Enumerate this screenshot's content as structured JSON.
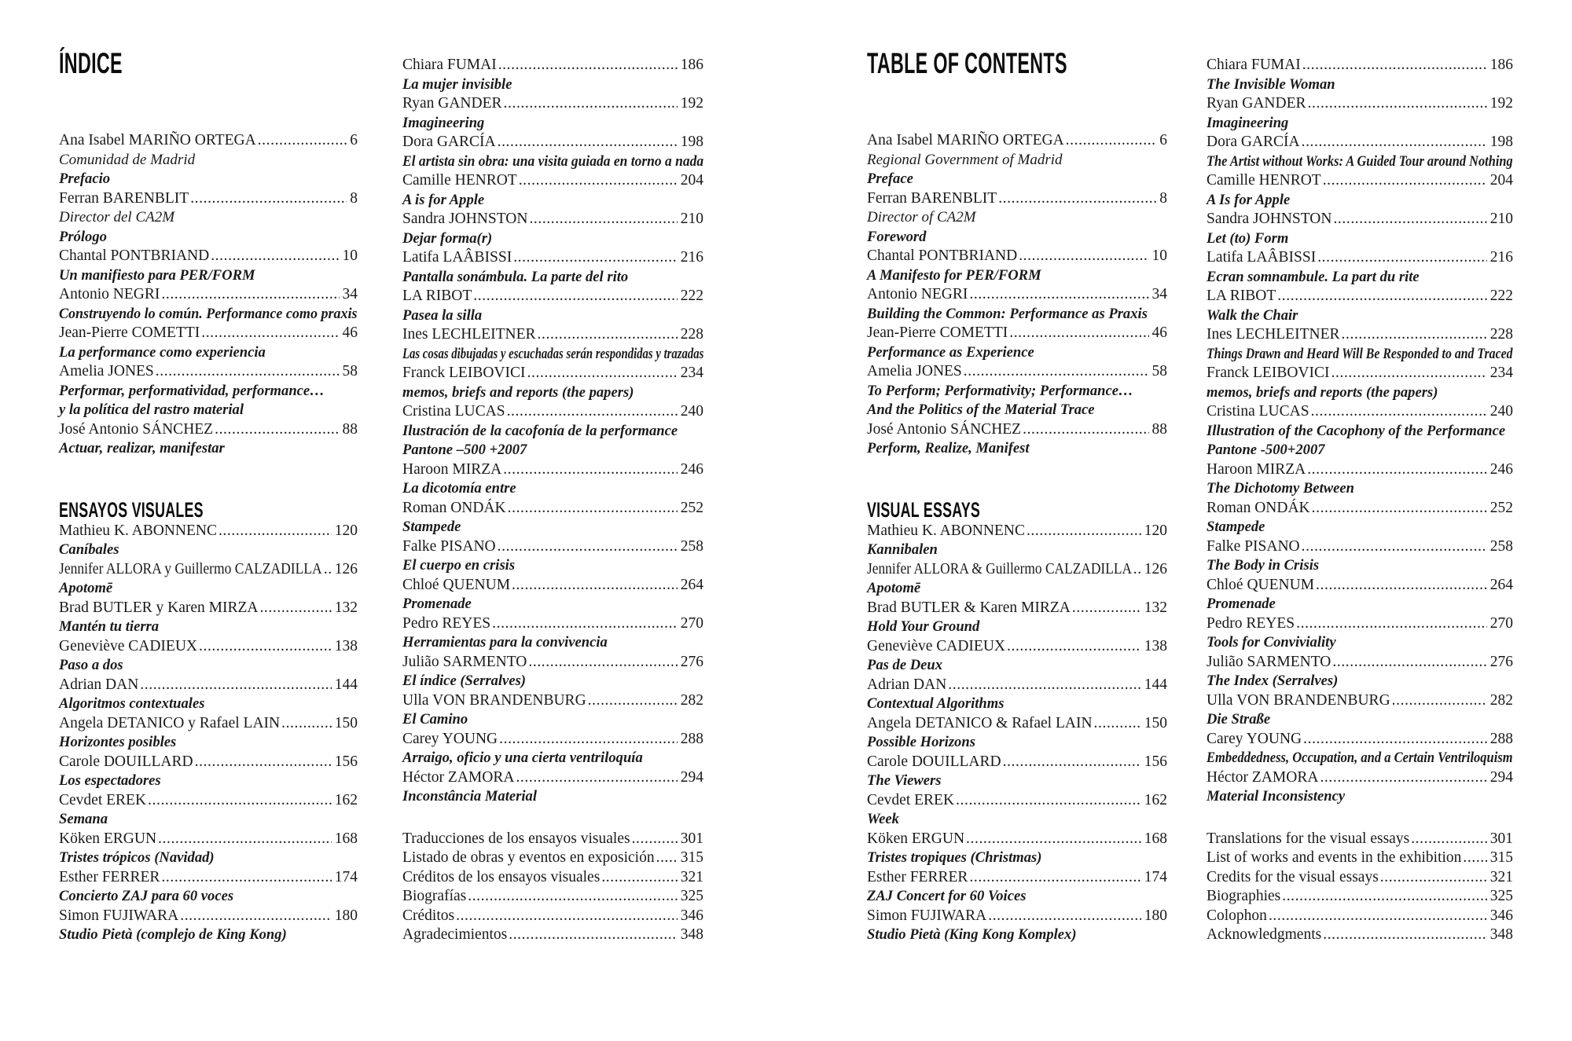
{
  "meta": {
    "background_color": "#ffffff",
    "text_color": "#1a1a1a",
    "heading_color": "#0d0d0d"
  },
  "pages": [
    {
      "side": "left",
      "title": "ÍNDICE",
      "columns": [
        {
          "items": [
            {
              "t": "e",
              "n": "Ana Isabel MARIÑO ORTEGA",
              "p": "6"
            },
            {
              "t": "i",
              "x": "Comunidad de Madrid"
            },
            {
              "t": "s",
              "x": "Prefacio"
            },
            {
              "t": "e",
              "n": "Ferran BARENBLIT",
              "p": "8"
            },
            {
              "t": "i",
              "x": "Director del CA2M"
            },
            {
              "t": "s",
              "x": "Prólogo"
            },
            {
              "t": "e",
              "n": "Chantal PONTBRIAND",
              "p": "10"
            },
            {
              "t": "s",
              "x": "Un manifiesto para PER/FORM"
            },
            {
              "t": "e",
              "n": "Antonio NEGRI",
              "p": "34"
            },
            {
              "t": "s",
              "x": "Construyendo lo común. Performance como praxis"
            },
            {
              "t": "e",
              "n": "Jean-Pierre COMETTI",
              "p": "46"
            },
            {
              "t": "s",
              "x": "La performance como experiencia"
            },
            {
              "t": "e",
              "n": "Amelia JONES",
              "p": "58"
            },
            {
              "t": "s",
              "x": "Performar, performatividad, performance…"
            },
            {
              "t": "s",
              "x": "y la política del rastro material"
            },
            {
              "t": "e",
              "n": "José Antonio SÁNCHEZ",
              "p": "88"
            },
            {
              "t": "s",
              "x": "Actuar, realizar, manifestar"
            },
            {
              "t": "sec",
              "x": "ENSAYOS VISUALES"
            },
            {
              "t": "e",
              "n": "Mathieu K. ABONNENC",
              "p": "120"
            },
            {
              "t": "s",
              "x": "Caníbales"
            },
            {
              "t": "e",
              "n": "Jennifer ALLORA y Guillermo CALZADILLA",
              "p": "126"
            },
            {
              "t": "s",
              "x": "Apotomē"
            },
            {
              "t": "e",
              "n": "Brad BUTLER y Karen MIRZA",
              "p": "132"
            },
            {
              "t": "s",
              "x": "Mantén tu tierra"
            },
            {
              "t": "e",
              "n": "Geneviève CADIEUX",
              "p": "138"
            },
            {
              "t": "s",
              "x": "Paso a dos"
            },
            {
              "t": "e",
              "n": "Adrian DAN",
              "p": "144"
            },
            {
              "t": "s",
              "x": "Algoritmos contextuales"
            },
            {
              "t": "e",
              "n": "Angela DETANICO y Rafael LAIN",
              "p": "150"
            },
            {
              "t": "s",
              "x": "Horizontes posibles"
            },
            {
              "t": "e",
              "n": "Carole DOUILLARD",
              "p": "156"
            },
            {
              "t": "s",
              "x": "Los espectadores"
            },
            {
              "t": "e",
              "n": "Cevdet EREK",
              "p": "162"
            },
            {
              "t": "s",
              "x": "Semana"
            },
            {
              "t": "e",
              "n": "Köken ERGUN",
              "p": "168"
            },
            {
              "t": "s",
              "x": "Tristes trópicos (Navidad)"
            },
            {
              "t": "e",
              "n": "Esther FERRER",
              "p": "174"
            },
            {
              "t": "s",
              "x": "Concierto ZAJ para 60 voces"
            },
            {
              "t": "e",
              "n": "Simon FUJIWARA",
              "p": "180"
            },
            {
              "t": "s",
              "x": "Studio Pietà (complejo de King Kong)"
            }
          ]
        },
        {
          "items": [
            {
              "t": "e",
              "n": "Chiara FUMAI",
              "p": "186"
            },
            {
              "t": "s",
              "x": "La mujer invisible"
            },
            {
              "t": "e",
              "n": "Ryan GANDER",
              "p": "192"
            },
            {
              "t": "s",
              "x": "Imagineering"
            },
            {
              "t": "e",
              "n": "Dora GARCÍA",
              "p": "198"
            },
            {
              "t": "s",
              "x": "El artista sin obra: una visita guiada en torno a nada"
            },
            {
              "t": "e",
              "n": "Camille HENROT",
              "p": "204"
            },
            {
              "t": "s",
              "x": "A is for Apple"
            },
            {
              "t": "e",
              "n": "Sandra JOHNSTON",
              "p": "210"
            },
            {
              "t": "s",
              "x": "Dejar forma(r)"
            },
            {
              "t": "e",
              "n": "Latifa LAÂBISSI",
              "p": "216"
            },
            {
              "t": "s",
              "x": "Pantalla sonámbula. La parte del rito"
            },
            {
              "t": "e",
              "n": "LA RIBOT",
              "p": "222"
            },
            {
              "t": "s",
              "x": "Pasea la silla"
            },
            {
              "t": "e",
              "n": "Ines LECHLEITNER",
              "p": "228"
            },
            {
              "t": "s",
              "x": "Las cosas dibujadas y escuchadas serán respondidas y trazadas"
            },
            {
              "t": "e",
              "n": "Franck LEIBOVICI",
              "p": "234"
            },
            {
              "t": "s",
              "x": "memos, briefs and reports (the papers)"
            },
            {
              "t": "e",
              "n": "Cristina LUCAS",
              "p": "240"
            },
            {
              "t": "s",
              "x": "Ilustración de la cacofonía de la performance"
            },
            {
              "t": "s",
              "x": "Pantone –500 +2007"
            },
            {
              "t": "e",
              "n": "Haroon MIRZA",
              "p": "246"
            },
            {
              "t": "s",
              "x": "La dicotomía entre"
            },
            {
              "t": "e",
              "n": "Roman ONDÁK",
              "p": "252"
            },
            {
              "t": "s",
              "x": "Stampede"
            },
            {
              "t": "e",
              "n": "Falke PISANO",
              "p": "258"
            },
            {
              "t": "s",
              "x": "El cuerpo en crisis"
            },
            {
              "t": "e",
              "n": "Chloé QUENUM",
              "p": "264"
            },
            {
              "t": "s",
              "x": "Promenade"
            },
            {
              "t": "e",
              "n": "Pedro REYES",
              "p": "270"
            },
            {
              "t": "s",
              "x": "Herramientas para la convivencia"
            },
            {
              "t": "e",
              "n": "Julião SARMENTO",
              "p": "276"
            },
            {
              "t": "s",
              "x": "El índice (Serralves)"
            },
            {
              "t": "e",
              "n": "Ulla VON BRANDENBURG",
              "p": "282"
            },
            {
              "t": "s",
              "x": "El Camino"
            },
            {
              "t": "e",
              "n": "Carey YOUNG",
              "p": "288"
            },
            {
              "t": "s",
              "x": "Arraigo, oficio y una cierta ventriloquía"
            },
            {
              "t": "e",
              "n": "Héctor ZAMORA",
              "p": "294"
            },
            {
              "t": "s",
              "x": "Inconstância Material"
            },
            {
              "t": "gap"
            },
            {
              "t": "e",
              "n": "Traducciones de los ensayos visuales",
              "p": "301"
            },
            {
              "t": "e",
              "n": "Listado de obras y eventos en exposición",
              "p": "315"
            },
            {
              "t": "e",
              "n": "Créditos de los ensayos visuales",
              "p": "321"
            },
            {
              "t": "e",
              "n": "Biografías",
              "p": "325"
            },
            {
              "t": "e",
              "n": "Créditos",
              "p": "346"
            },
            {
              "t": "e",
              "n": "Agradecimientos",
              "p": "348"
            }
          ]
        }
      ]
    },
    {
      "side": "right",
      "title": "TABLE OF CONTENTS",
      "columns": [
        {
          "items": [
            {
              "t": "e",
              "n": "Ana Isabel MARIÑO ORTEGA",
              "p": "6"
            },
            {
              "t": "i",
              "x": "Regional Government of Madrid"
            },
            {
              "t": "s",
              "x": "Preface"
            },
            {
              "t": "e",
              "n": "Ferran BARENBLIT",
              "p": "8"
            },
            {
              "t": "i",
              "x": "Director of CA2M"
            },
            {
              "t": "s",
              "x": "Foreword"
            },
            {
              "t": "e",
              "n": "Chantal PONTBRIAND",
              "p": "10"
            },
            {
              "t": "s",
              "x": "A Manifesto for PER/FORM"
            },
            {
              "t": "e",
              "n": "Antonio NEGRI",
              "p": "34"
            },
            {
              "t": "s",
              "x": "Building the Common: Performance as Praxis"
            },
            {
              "t": "e",
              "n": "Jean-Pierre COMETTI",
              "p": "46"
            },
            {
              "t": "s",
              "x": "Performance as Experience"
            },
            {
              "t": "e",
              "n": "Amelia JONES",
              "p": "58"
            },
            {
              "t": "s",
              "x": "To Perform; Performativity; Performance…"
            },
            {
              "t": "s",
              "x": "And the Politics of the Material Trace"
            },
            {
              "t": "e",
              "n": "José Antonio SÁNCHEZ",
              "p": "88"
            },
            {
              "t": "s",
              "x": "Perform, Realize, Manifest"
            },
            {
              "t": "sec",
              "x": "VISUAL ESSAYS"
            },
            {
              "t": "e",
              "n": "Mathieu K. ABONNENC",
              "p": "120"
            },
            {
              "t": "s",
              "x": "Kannibalen"
            },
            {
              "t": "e",
              "n": "Jennifer ALLORA & Guillermo CALZADILLA",
              "p": "126"
            },
            {
              "t": "s",
              "x": "Apotomē"
            },
            {
              "t": "e",
              "n": "Brad BUTLER & Karen MIRZA",
              "p": "132"
            },
            {
              "t": "s",
              "x": "Hold Your Ground"
            },
            {
              "t": "e",
              "n": "Geneviève CADIEUX",
              "p": "138"
            },
            {
              "t": "s",
              "x": "Pas de Deux"
            },
            {
              "t": "e",
              "n": "Adrian DAN",
              "p": "144"
            },
            {
              "t": "s",
              "x": "Contextual Algorithms"
            },
            {
              "t": "e",
              "n": "Angela DETANICO & Rafael LAIN",
              "p": "150"
            },
            {
              "t": "s",
              "x": "Possible Horizons"
            },
            {
              "t": "e",
              "n": "Carole DOUILLARD",
              "p": "156"
            },
            {
              "t": "s",
              "x": "The Viewers"
            },
            {
              "t": "e",
              "n": "Cevdet EREK",
              "p": "162"
            },
            {
              "t": "s",
              "x": "Week"
            },
            {
              "t": "e",
              "n": "Köken ERGUN",
              "p": "168"
            },
            {
              "t": "s",
              "x": "Tristes tropiques (Christmas)"
            },
            {
              "t": "e",
              "n": "Esther FERRER",
              "p": "174"
            },
            {
              "t": "s",
              "x": "ZAJ Concert for 60 Voices"
            },
            {
              "t": "e",
              "n": "Simon FUJIWARA",
              "p": "180"
            },
            {
              "t": "s",
              "x": "Studio Pietà (King Kong Komplex)"
            }
          ]
        },
        {
          "items": [
            {
              "t": "e",
              "n": "Chiara FUMAI",
              "p": "186"
            },
            {
              "t": "s",
              "x": "The Invisible Woman"
            },
            {
              "t": "e",
              "n": "Ryan GANDER",
              "p": "192"
            },
            {
              "t": "s",
              "x": "Imagineering"
            },
            {
              "t": "e",
              "n": "Dora GARCÍA",
              "p": "198"
            },
            {
              "t": "s",
              "x": "The Artist without Works: A Guided Tour around Nothing"
            },
            {
              "t": "e",
              "n": "Camille HENROT",
              "p": "204"
            },
            {
              "t": "s",
              "x": "A Is for Apple"
            },
            {
              "t": "e",
              "n": "Sandra JOHNSTON",
              "p": "210"
            },
            {
              "t": "s",
              "x": "Let (to) Form"
            },
            {
              "t": "e",
              "n": "Latifa LAÂBISSI",
              "p": "216"
            },
            {
              "t": "s",
              "x": "Ecran somnambule. La part du rite"
            },
            {
              "t": "e",
              "n": "LA RIBOT",
              "p": "222"
            },
            {
              "t": "s",
              "x": "Walk the Chair"
            },
            {
              "t": "e",
              "n": "Ines LECHLEITNER",
              "p": "228"
            },
            {
              "t": "s",
              "x": "Things Drawn and Heard Will Be Responded to and Traced"
            },
            {
              "t": "e",
              "n": "Franck LEIBOVICI",
              "p": "234"
            },
            {
              "t": "s",
              "x": "memos, briefs and reports (the papers)"
            },
            {
              "t": "e",
              "n": "Cristina LUCAS",
              "p": "240"
            },
            {
              "t": "s",
              "x": "Illustration of the Cacophony of the Performance"
            },
            {
              "t": "s",
              "x": "Pantone -500+2007"
            },
            {
              "t": "e",
              "n": "Haroon MIRZA",
              "p": "246"
            },
            {
              "t": "s",
              "x": "The Dichotomy Between"
            },
            {
              "t": "e",
              "n": "Roman ONDÁK",
              "p": "252"
            },
            {
              "t": "s",
              "x": "Stampede"
            },
            {
              "t": "e",
              "n": "Falke PISANO",
              "p": "258"
            },
            {
              "t": "s",
              "x": "The Body in Crisis"
            },
            {
              "t": "e",
              "n": "Chloé QUENUM",
              "p": "264"
            },
            {
              "t": "s",
              "x": "Promenade"
            },
            {
              "t": "e",
              "n": "Pedro REYES",
              "p": "270"
            },
            {
              "t": "s",
              "x": "Tools for Conviviality"
            },
            {
              "t": "e",
              "n": "Julião SARMENTO",
              "p": "276"
            },
            {
              "t": "s",
              "x": "The Index (Serralves)"
            },
            {
              "t": "e",
              "n": "Ulla VON BRANDENBURG",
              "p": "282"
            },
            {
              "t": "s",
              "x": "Die Straße"
            },
            {
              "t": "e",
              "n": "Carey YOUNG",
              "p": "288"
            },
            {
              "t": "s",
              "x": "Embeddedness, Occupation, and a Certain Ventriloquism"
            },
            {
              "t": "e",
              "n": "Héctor ZAMORA",
              "p": "294"
            },
            {
              "t": "s",
              "x": "Material Inconsistency"
            },
            {
              "t": "gap"
            },
            {
              "t": "e",
              "n": "Translations for the visual essays",
              "p": "301"
            },
            {
              "t": "e",
              "n": "List of works and events in the exhibition",
              "p": "315"
            },
            {
              "t": "e",
              "n": "Credits for the visual essays",
              "p": "321"
            },
            {
              "t": "e",
              "n": "Biographies",
              "p": "325"
            },
            {
              "t": "e",
              "n": "Colophon",
              "p": "346"
            },
            {
              "t": "e",
              "n": "Acknowledgments",
              "p": "348"
            }
          ]
        }
      ]
    }
  ]
}
